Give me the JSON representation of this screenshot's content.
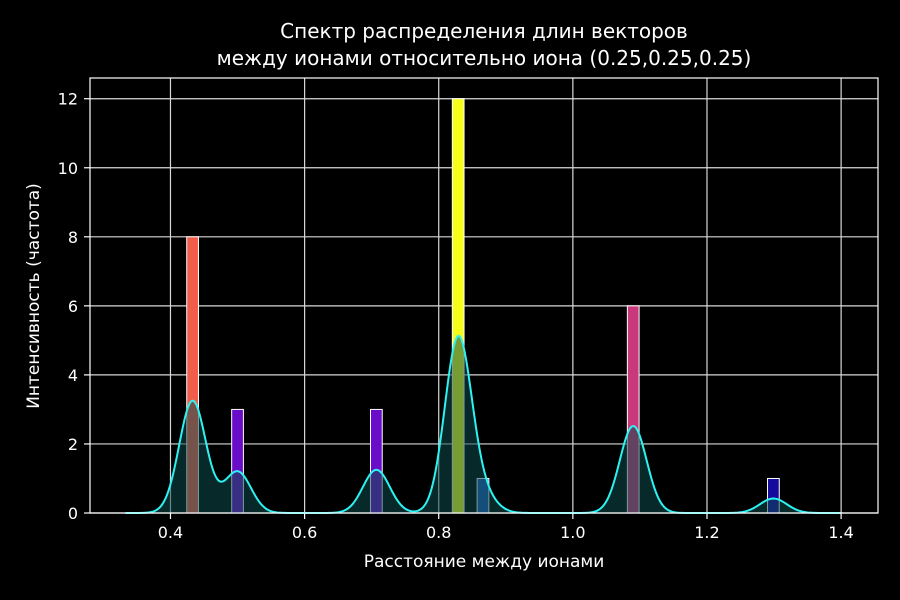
{
  "chart_data": {
    "type": "histogram",
    "title_line1": "Спектр распределения длин векторов",
    "title_line2": "между ионами относительно иона (0.25,0.25,0.25)",
    "xlabel": "Расстояние между ионами",
    "ylabel": "Интенсивность (частота)",
    "xlim": [
      0.28,
      1.455
    ],
    "ylim": [
      0,
      12.6
    ],
    "x_ticks": [
      "0.4",
      "0.6",
      "0.8",
      "1.0",
      "1.2",
      "1.4"
    ],
    "y_ticks": [
      "0",
      "2",
      "4",
      "6",
      "8",
      "10",
      "12"
    ],
    "grid": true,
    "bar_width": 0.0175,
    "bars": [
      {
        "x": 0.433,
        "value": 8,
        "color": "#f25c4a"
      },
      {
        "x": 0.5,
        "value": 3,
        "color": "#6a0dc8"
      },
      {
        "x": 0.707,
        "value": 3,
        "color": "#6a0dc8"
      },
      {
        "x": 0.829,
        "value": 12,
        "color": "#f5ff1a"
      },
      {
        "x": 0.866,
        "value": 1,
        "color": "#1c52b5"
      },
      {
        "x": 1.09,
        "value": 6,
        "color": "#c8387a"
      },
      {
        "x": 1.299,
        "value": 1,
        "color": "#140a9c"
      }
    ],
    "kde": {
      "color": "#2ef2f2",
      "fill": "#0e4a4a",
      "x_range": [
        0.333,
        1.399
      ],
      "peaks": [
        {
          "center": 0.433,
          "height": 3.25,
          "sigma": 0.02
        },
        {
          "center": 0.5,
          "height": 1.2,
          "sigma": 0.02
        },
        {
          "center": 0.707,
          "height": 1.25,
          "sigma": 0.02
        },
        {
          "center": 0.829,
          "height": 5.05,
          "sigma": 0.02
        },
        {
          "center": 0.866,
          "height": 0.45,
          "sigma": 0.02
        },
        {
          "center": 1.09,
          "height": 2.52,
          "sigma": 0.02
        },
        {
          "center": 1.299,
          "height": 0.42,
          "sigma": 0.02
        }
      ]
    }
  }
}
